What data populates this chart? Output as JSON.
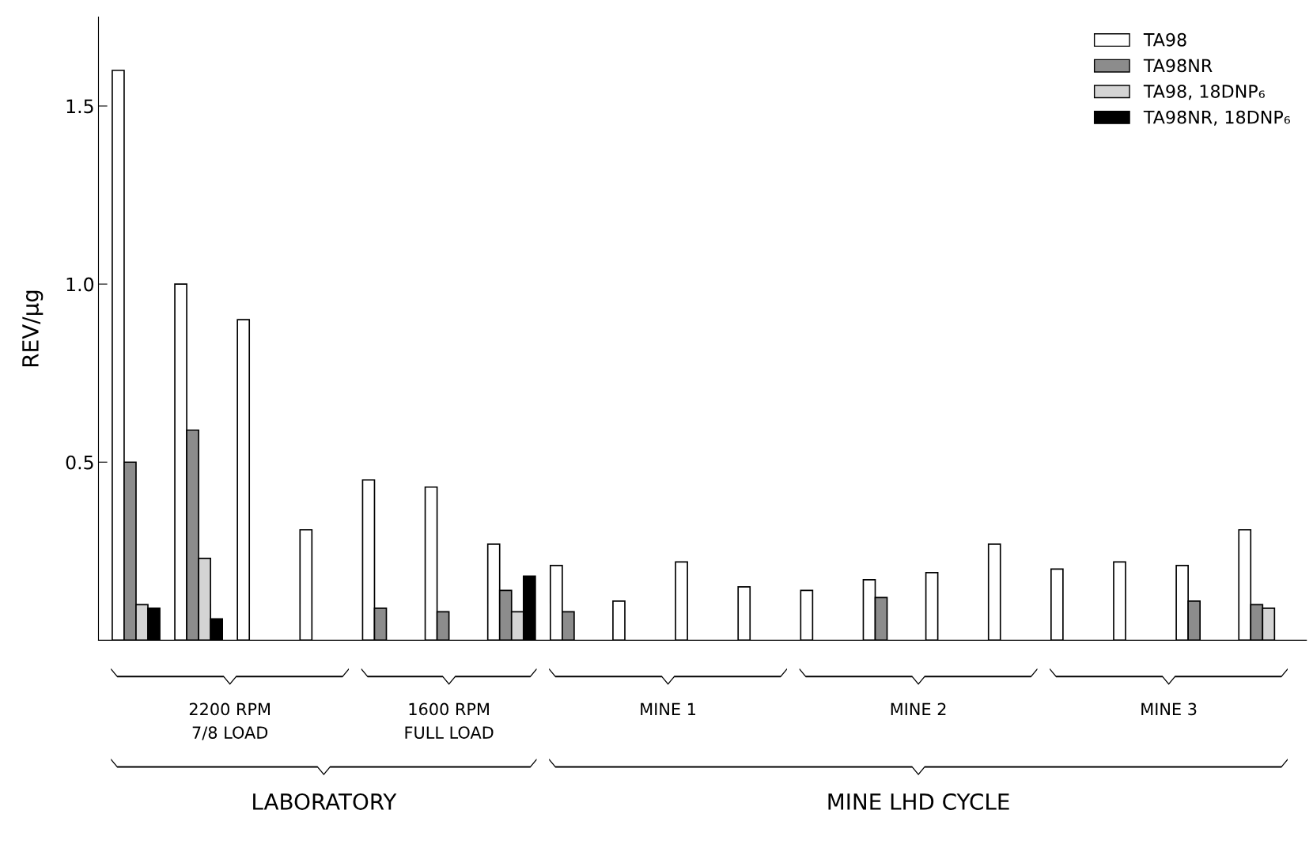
{
  "chart_data": {
    "type": "bar",
    "ylabel": "REV/μg",
    "categories": [
      null,
      null,
      null,
      null,
      null,
      null,
      null,
      null,
      null,
      null,
      null,
      null,
      null,
      null,
      null,
      null,
      null,
      null,
      null
    ],
    "ylim": [
      0,
      1.75
    ],
    "yticks": [
      {
        "value": 0.5,
        "label": "0.5"
      },
      {
        "value": 1.0,
        "label": "1.0"
      },
      {
        "value": 1.5,
        "label": "1.5"
      }
    ],
    "grid": false,
    "legend": "top right",
    "series": [
      {
        "name": "TA98",
        "color": "#ffffff",
        "values": [
          1.6,
          1.0,
          0.9,
          0.31,
          0.45,
          0.43,
          0.27,
          0.21,
          0.11,
          0.22,
          0.15,
          0.14,
          0.17,
          0.19,
          0.27,
          0.2,
          0.22,
          0.21,
          0.31
        ]
      },
      {
        "name": "TA98NR",
        "color": "#8c8c8c",
        "values": [
          0.5,
          0.59,
          null,
          null,
          0.09,
          0.08,
          0.14,
          0.08,
          null,
          null,
          null,
          null,
          0.12,
          null,
          null,
          null,
          null,
          0.11,
          0.1
        ]
      },
      {
        "name": "TA98, 18DNP₆",
        "color": "#d4d4d4",
        "values": [
          0.1,
          0.23,
          null,
          null,
          null,
          null,
          0.08,
          null,
          null,
          null,
          null,
          null,
          null,
          null,
          null,
          null,
          null,
          null,
          0.09
        ]
      },
      {
        "name": "TA98NR, 18DNP₆",
        "color": "#000000",
        "values": [
          0.09,
          0.06,
          null,
          null,
          null,
          null,
          0.18,
          null,
          null,
          null,
          null,
          null,
          null,
          null,
          null,
          null,
          null,
          null,
          null
        ]
      }
    ],
    "annotations": [
      "2200 RPM\n7/8 LOAD",
      "1600 RPM\nFULL LOAD",
      "MINE 1",
      "MINE 2",
      "MINE 3",
      "LABORATORY",
      "MINE LHD CYCLE"
    ]
  }
}
